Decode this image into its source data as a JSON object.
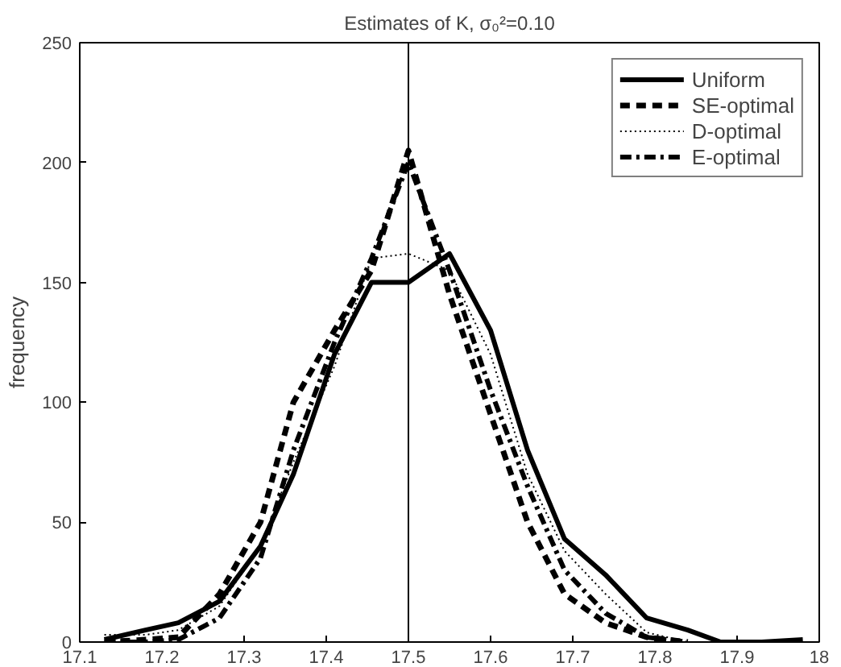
{
  "chart_data": {
    "type": "line",
    "title": "Estimates of K, σ₀²=0.10",
    "ylabel": "frequency",
    "x": [
      17.13,
      17.18,
      17.22,
      17.27,
      17.32,
      17.36,
      17.41,
      17.455,
      17.5,
      17.55,
      17.6,
      17.645,
      17.69,
      17.74,
      17.79,
      17.84,
      17.88,
      17.93,
      17.98
    ],
    "series": [
      {
        "name": "Uniform",
        "color": "#000000",
        "line_style": "solid",
        "values": [
          1,
          5,
          8,
          17,
          40,
          70,
          120,
          150,
          150,
          162,
          130,
          80,
          43,
          28,
          10,
          5,
          0,
          0,
          1
        ]
      },
      {
        "name": "SE-optimal",
        "color": "#000000",
        "line_style": "dashed",
        "values": [
          0,
          1,
          2,
          20,
          50,
          100,
          130,
          155,
          205,
          145,
          95,
          50,
          20,
          8,
          2,
          0,
          null,
          null,
          null
        ]
      },
      {
        "name": "D-optimal",
        "color": "#000000",
        "line_style": "dotted",
        "values": [
          3,
          3,
          5,
          15,
          40,
          75,
          115,
          160,
          162,
          155,
          120,
          70,
          38,
          20,
          4,
          0,
          null,
          null,
          null
        ]
      },
      {
        "name": "E-optimal",
        "color": "#000000",
        "line_style": "dashdot",
        "values": [
          0,
          0,
          1,
          10,
          35,
          80,
          125,
          160,
          200,
          155,
          105,
          65,
          30,
          12,
          2,
          0,
          null,
          null,
          null
        ]
      }
    ],
    "xlim": [
      17.1,
      18
    ],
    "xticks": [
      17.1,
      17.2,
      17.3,
      17.4,
      17.5,
      17.6,
      17.7,
      17.8,
      17.9,
      18
    ],
    "ylim": [
      0,
      250
    ],
    "yticks": [
      0,
      50,
      100,
      150,
      200,
      250
    ],
    "ref_lines": [
      {
        "axis": "x",
        "value": 17.5,
        "color": "#000000"
      }
    ],
    "grid": false,
    "legend": "top right"
  }
}
